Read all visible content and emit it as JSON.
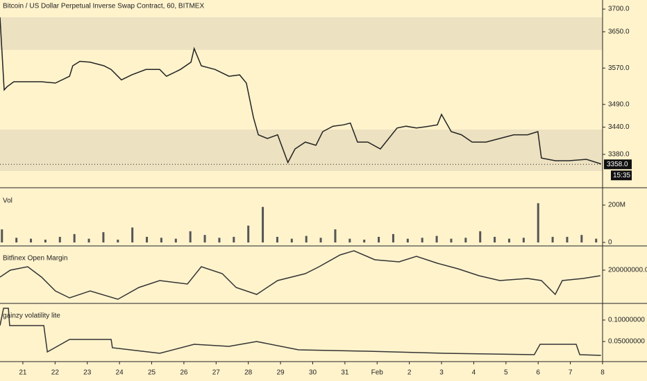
{
  "chart_data": [
    {
      "type": "line",
      "title": "Bitcoin / US Dollar Perpetual Inverse Swap Contract, 60, BITMEX",
      "x": [
        20.29,
        20.42,
        20.51,
        20.72,
        21.15,
        21.58,
        22.01,
        22.45,
        22.55,
        22.77,
        23.09,
        23.52,
        23.74,
        24.06,
        24.38,
        24.82,
        25.25,
        25.46,
        25.89,
        26.22,
        26.32,
        26.54,
        26.97,
        27.4,
        27.73,
        27.94,
        28.16,
        28.31,
        28.59,
        28.91,
        29.23,
        29.45,
        29.77,
        30.1,
        30.31,
        30.63,
        30.96,
        31.17,
        31.39,
        31.71,
        32.1,
        32.36,
        32.62,
        32.9,
        33.22,
        33.54,
        33.87,
        34.0,
        34.3,
        34.62,
        34.95,
        35.38,
        35.81,
        36.24,
        36.67,
        36.99,
        37.1,
        37.53,
        37.96,
        38.5,
        38.95
      ],
      "series": [
        {
          "name": "Bitcoin / US Dollar Perpetual Inverse Swap Contract, 60, BITMEX",
          "color": "#222222",
          "values": [
            3682,
            3522,
            3529,
            3540,
            3540,
            3540,
            3537,
            3552,
            3575,
            3585,
            3583,
            3575,
            3567,
            3544,
            3555,
            3567,
            3567,
            3552,
            3567,
            3583,
            3613,
            3575,
            3567,
            3552,
            3555,
            3537,
            3461,
            3423,
            3415,
            3423,
            3362,
            3392,
            3407,
            3400,
            3430,
            3442,
            3445,
            3449,
            3407,
            3407,
            3392,
            3415,
            3438,
            3442,
            3438,
            3441,
            3445,
            3468,
            3430,
            3423,
            3407,
            3407,
            3415,
            3423,
            3423,
            3430,
            3372,
            3366,
            3366,
            3369,
            3359
          ]
        }
      ],
      "xlim": [
        20.29,
        39.0
      ],
      "ylim": [
        3308,
        3720
      ],
      "yticks": [
        {
          "value": 3700,
          "label": "3700.0"
        },
        {
          "value": 3650,
          "label": "3650.0"
        },
        {
          "value": 3570,
          "label": "3570.0"
        },
        {
          "value": 3490,
          "label": "3490.0"
        },
        {
          "value": 3440,
          "label": "3440.0"
        },
        {
          "value": 3380,
          "label": "3380.0"
        }
      ],
      "last_price": {
        "value": 3358,
        "label": "3358.0"
      },
      "countdown": "15:35"
    },
    {
      "type": "bar",
      "x": [
        20.35,
        20.8,
        21.25,
        21.7,
        22.15,
        22.6,
        23.05,
        23.5,
        23.95,
        24.4,
        24.85,
        25.3,
        25.75,
        26.2,
        26.65,
        27.1,
        27.55,
        28.0,
        28.45,
        28.9,
        29.35,
        29.8,
        30.25,
        30.7,
        31.15,
        31.6,
        32.05,
        32.5,
        32.95,
        33.4,
        33.85,
        34.3,
        34.75,
        35.2,
        35.65,
        36.1,
        36.55,
        37.0,
        37.45,
        37.9,
        38.35,
        38.8
      ],
      "series": [
        {
          "name": "Vol",
          "color": "#555555",
          "values": [
            70000000,
            25000000,
            20000000,
            15000000,
            30000000,
            45000000,
            20000000,
            55000000,
            15000000,
            80000000,
            30000000,
            25000000,
            20000000,
            60000000,
            40000000,
            25000000,
            30000000,
            90000000,
            190000000,
            30000000,
            20000000,
            35000000,
            25000000,
            70000000,
            20000000,
            15000000,
            30000000,
            45000000,
            20000000,
            25000000,
            35000000,
            20000000,
            25000000,
            60000000,
            30000000,
            20000000,
            25000000,
            210000000,
            30000000,
            30000000,
            40000000,
            20000000
          ]
        }
      ],
      "xlim": [
        20.29,
        39.0
      ],
      "ylim": [
        -18500000,
        289000000
      ],
      "yticks": [
        {
          "value": 200000000,
          "label": "200M"
        },
        0
      ]
    },
    {
      "type": "line",
      "x": [
        20.29,
        20.61,
        21.15,
        21.58,
        22.01,
        22.45,
        23.09,
        23.95,
        24.6,
        25.25,
        26.11,
        26.54,
        27.19,
        27.62,
        28.26,
        28.91,
        29.77,
        30.2,
        30.85,
        31.28,
        31.93,
        32.68,
        33.22,
        33.87,
        34.51,
        35.16,
        35.81,
        36.67,
        37.1,
        37.53,
        37.75,
        38.39,
        38.93
      ],
      "series": [
        {
          "name": "Bitfinex Open Margin",
          "color": "#333333",
          "values": [
            199000000,
            200000000,
            200500000,
            199000000,
            197000000,
            196000000,
            197000000,
            195800000,
            197500000,
            198500000,
            198000000,
            200500000,
            199500000,
            197500000,
            196500000,
            198500000,
            199500000,
            200500000,
            202200000,
            202800000,
            201500000,
            201200000,
            202000000,
            201000000,
            200200000,
            199200000,
            198500000,
            198800000,
            198500000,
            196500000,
            198500000,
            198800000,
            199200000
          ]
        }
      ],
      "xlim": [
        20.29,
        39.0
      ],
      "ylim": [
        195200000,
        203400000
      ],
      "yticks": [
        {
          "value": 200000000,
          "label": "200000000.0000"
        }
      ]
    },
    {
      "type": "line",
      "x": [
        20.29,
        20.4,
        20.55,
        20.59,
        21.65,
        21.76,
        22.45,
        23.74,
        23.78,
        25.25,
        26.32,
        27.4,
        28.26,
        29.56,
        31.71,
        34.08,
        36.88,
        37.06,
        38.18,
        38.29,
        38.95
      ],
      "series": [
        {
          "name": "gainzy volatility lite",
          "color": "#333333",
          "values": [
            0.0871,
            0.1274,
            0.1274,
            0.0871,
            0.0871,
            0.0258,
            0.0548,
            0.0548,
            0.0355,
            0.0226,
            0.0435,
            0.0387,
            0.05,
            0.0306,
            0.0274,
            0.0226,
            0.0194,
            0.0435,
            0.0435,
            0.0194,
            0.0177
          ]
        }
      ],
      "xlim": [
        20.29,
        39.0
      ],
      "ylim": [
        0.0032,
        0.1371
      ],
      "yticks": [
        {
          "value": 0.1,
          "label": "0.10000000"
        },
        {
          "value": 0.05,
          "label": "0.05000000"
        }
      ],
      "xticks": [
        21,
        22,
        23,
        24,
        25,
        26,
        27,
        28,
        29,
        30,
        31,
        {
          "value": 32,
          "label": "Feb"
        },
        {
          "value": 33,
          "label": "2"
        },
        {
          "value": 34,
          "label": "3"
        },
        {
          "value": 35,
          "label": "4"
        },
        {
          "value": 36,
          "label": "5"
        },
        {
          "value": 37,
          "label": "6"
        },
        {
          "value": 38,
          "label": "7"
        },
        {
          "value": 39,
          "label": "8"
        }
      ]
    }
  ]
}
